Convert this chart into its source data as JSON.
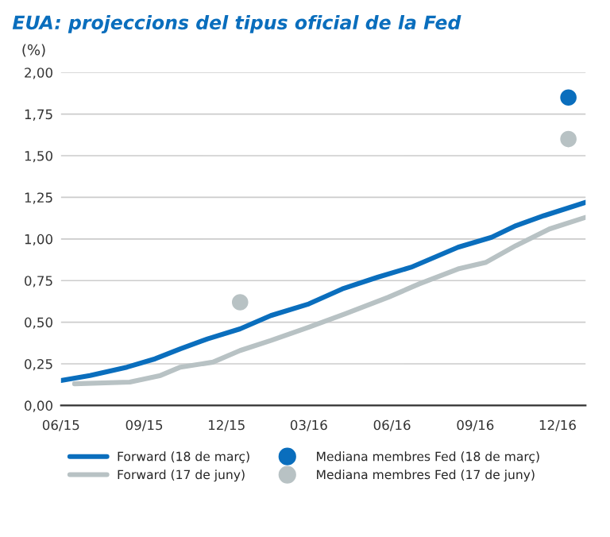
{
  "chart_data": {
    "type": "line",
    "title": "EUA: projeccions del tipus oficial de la Fed",
    "ylabel": "(%)",
    "series": [
      {
        "name": "Forward (18 de març)",
        "color": "#0a6ebd",
        "x": [
          "2015-06-01",
          "2015-07-03",
          "2015-08-13",
          "2015-09-13",
          "2015-10-11",
          "2015-11-10",
          "2015-12-16",
          "2016-01-19",
          "2016-03-01",
          "2016-04-07",
          "2016-05-16",
          "2016-06-22",
          "2016-08-13",
          "2016-09-19",
          "2016-10-16",
          "2016-11-16",
          "2017-01-01"
        ],
        "values": [
          0.15,
          0.18,
          0.23,
          0.28,
          0.34,
          0.4,
          0.46,
          0.54,
          0.61,
          0.7,
          0.77,
          0.83,
          0.95,
          1.01,
          1.08,
          1.14,
          1.22
        ]
      },
      {
        "name": "Forward (17 de juny)",
        "color": "#b8c2c4",
        "x": [
          "2015-06-16",
          "2015-08-16",
          "2015-09-19",
          "2015-10-11",
          "2015-11-16",
          "2015-12-16",
          "2016-01-19",
          "2016-03-01",
          "2016-04-10",
          "2016-05-28",
          "2016-07-01",
          "2016-08-13",
          "2016-09-13",
          "2016-10-16",
          "2016-11-22",
          "2017-01-01"
        ],
        "values": [
          0.13,
          0.14,
          0.18,
          0.23,
          0.26,
          0.33,
          0.39,
          0.47,
          0.55,
          0.65,
          0.73,
          0.82,
          0.86,
          0.96,
          1.06,
          1.13
        ]
      },
      {
        "name": "Mediana membres Fed (18 de març)",
        "type": "scatter",
        "marker": "circle",
        "color": "#0a6ebd",
        "x": [
          "2016-12-13"
        ],
        "values": [
          1.85
        ]
      },
      {
        "name": "Mediana membres Fed (17 de juny)",
        "type": "scatter",
        "marker": "circle",
        "color": "#b8c2c4",
        "x": [
          "2015-12-16",
          "2016-12-13"
        ],
        "values": [
          0.62,
          1.6
        ]
      }
    ],
    "xlim": [
      "2015-06-01",
      "2017-01-01"
    ],
    "xticks": [
      {
        "value": "2015-06",
        "label": "06/15"
      },
      {
        "value": "2015-09",
        "label": "09/15"
      },
      {
        "value": "2015-12",
        "label": "12/15"
      },
      {
        "value": "2016-03",
        "label": "03/16"
      },
      {
        "value": "2016-06",
        "label": "06/16"
      },
      {
        "value": "2016-09",
        "label": "09/16"
      },
      {
        "value": "2016-12",
        "label": "12/16"
      }
    ],
    "ylim": [
      0,
      2.0
    ],
    "yticks": [
      {
        "value": 0,
        "label": "0,00"
      },
      {
        "value": 0.25,
        "label": "0,25"
      },
      {
        "value": 0.5,
        "label": "0,50"
      },
      {
        "value": 0.75,
        "label": "0,75"
      },
      {
        "value": 1.0,
        "label": "1,00"
      },
      {
        "value": 1.25,
        "label": "1,25"
      },
      {
        "value": 1.5,
        "label": "1,50"
      },
      {
        "value": 1.75,
        "label": "1,75"
      },
      {
        "value": 2.0,
        "label": "2,00"
      }
    ],
    "grid": "y",
    "legend": "bottom",
    "line_style": "solid"
  }
}
